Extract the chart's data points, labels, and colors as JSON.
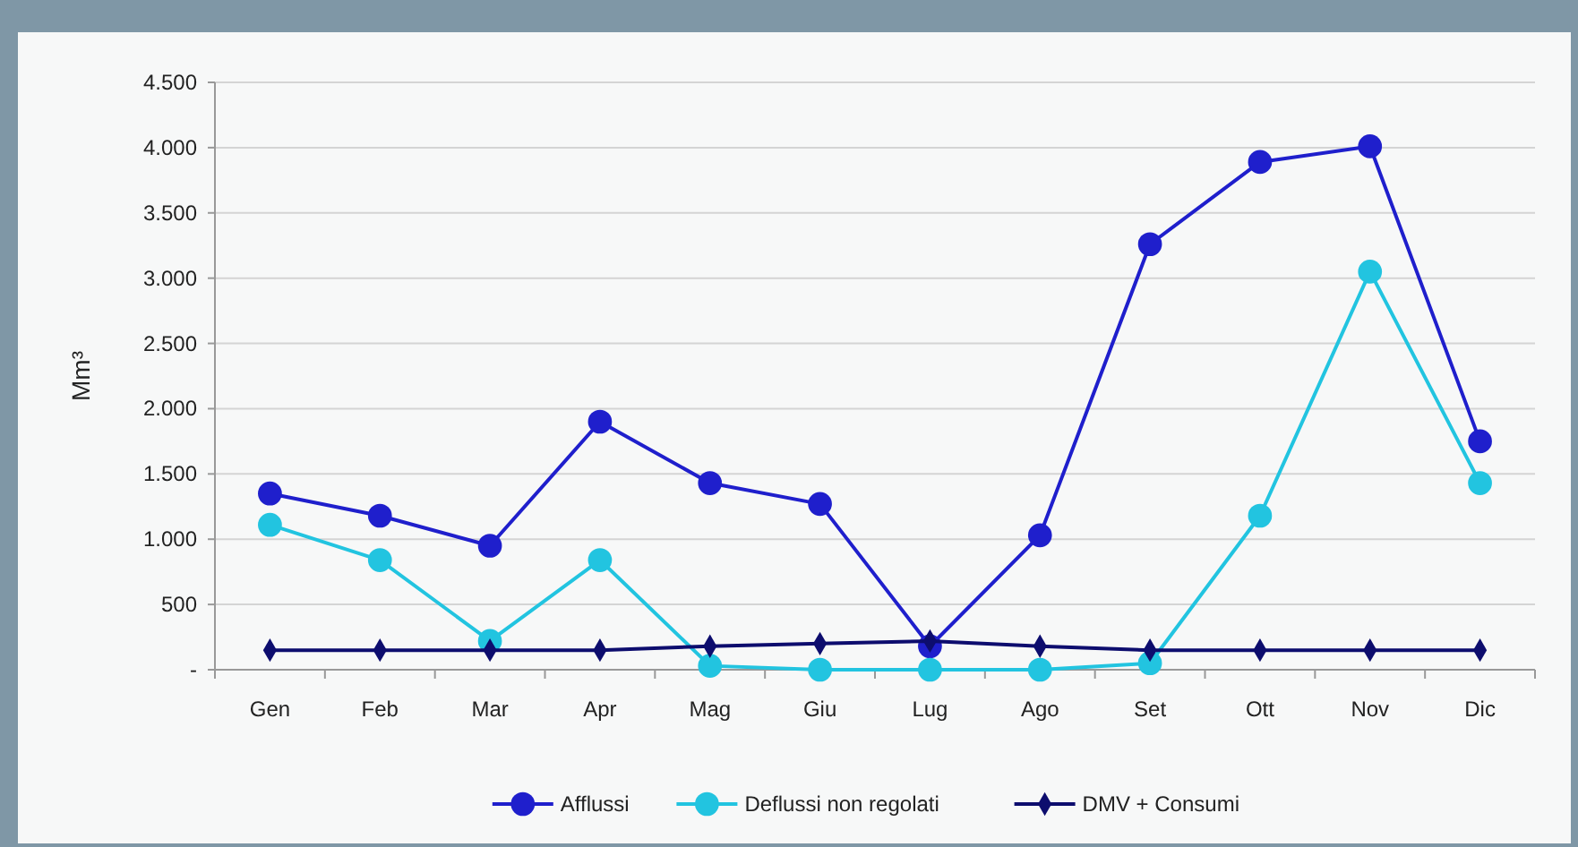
{
  "chart_data": {
    "type": "line",
    "ylabel": "Mm³",
    "categories": [
      "Gen",
      "Feb",
      "Mar",
      "Apr",
      "Mag",
      "Giu",
      "Lug",
      "Ago",
      "Set",
      "Ott",
      "Nov",
      "Dic"
    ],
    "series": [
      {
        "name": "Afflussi",
        "color": "#1f1fcc",
        "marker": "circle",
        "values": [
          1350,
          1180,
          950,
          1900,
          1430,
          1270,
          180,
          1030,
          3260,
          3890,
          4010,
          1750
        ]
      },
      {
        "name": "Deflussi non regolati",
        "color": "#22c4e0",
        "marker": "circle",
        "values": [
          1110,
          840,
          220,
          840,
          30,
          0,
          0,
          0,
          50,
          1180,
          3050,
          1430
        ]
      },
      {
        "name": "DMV + Consumi",
        "color": "#0d0d6e",
        "marker": "diamond",
        "values": [
          150,
          150,
          150,
          150,
          180,
          200,
          220,
          180,
          150,
          150,
          150,
          150
        ]
      }
    ],
    "ylim": [
      0,
      4500
    ],
    "yticks": [
      {
        "value": 0,
        "label": "-"
      },
      {
        "value": 500,
        "label": "500"
      },
      {
        "value": 1000,
        "label": "1.000"
      },
      {
        "value": 1500,
        "label": "1.500"
      },
      {
        "value": 2000,
        "label": "2.000"
      },
      {
        "value": 2500,
        "label": "2.500"
      },
      {
        "value": 3000,
        "label": "3.000"
      },
      {
        "value": 3500,
        "label": "3.500"
      },
      {
        "value": 4000,
        "label": "4.000"
      },
      {
        "value": 4500,
        "label": "4.500"
      }
    ],
    "grid": "y",
    "legend": "bottom"
  }
}
